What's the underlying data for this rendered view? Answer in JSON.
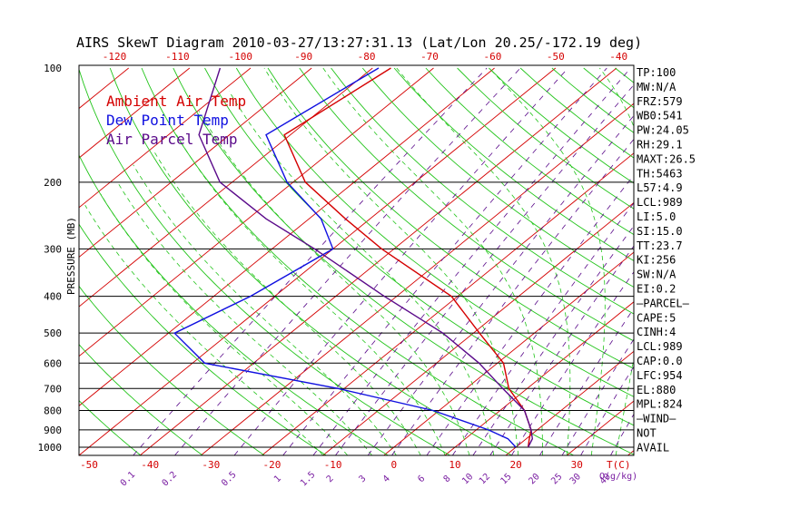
{
  "title": "AIRS SkewT Diagram 2010-03-27/13:27:31.13 (Lat/Lon 20.25/-172.19 deg)",
  "colors": {
    "ambient": "#d40000",
    "dewpoint": "#1010e0",
    "parcel": "#5a0a8a",
    "isotherm": "#d40000",
    "dry_adiabat": "#22c41a",
    "moist_adiabat": "#22c41a",
    "mixing_ratio": "#5a0a8a",
    "isobar": "#000000"
  },
  "chart_data": {
    "type": "line",
    "title": "AIRS SkewT Diagram 2010-03-27/13:27:31.13 (Lat/Lon 20.25/-172.19 deg)",
    "ylabel": "PRESSURE (MB)",
    "xlabel": "T(C)",
    "pressure_levels": [
      100,
      200,
      300,
      400,
      500,
      600,
      700,
      800,
      900,
      1000
    ],
    "pressure_range": [
      100,
      1050
    ],
    "bottom_temp_range": [
      -55,
      40
    ],
    "top_temp_ticks": [
      -120,
      -110,
      -100,
      -90,
      -80,
      -70,
      -60,
      -50,
      -40
    ],
    "bottom_temp_ticks": [
      -50,
      -40,
      -30,
      -20,
      -10,
      0,
      10,
      20,
      30
    ],
    "mixing_ratio_labels": [
      "0.1",
      "0.2",
      "0.5",
      "1",
      "1.5",
      "2",
      "3",
      "4",
      "6",
      "8",
      "10",
      "12",
      "15",
      "20",
      "25",
      "30",
      "40"
    ],
    "mixing_ratio_values": [
      0.1,
      0.2,
      0.5,
      1,
      1.5,
      2,
      3,
      4,
      6,
      8,
      10,
      12,
      15,
      20,
      25,
      30,
      40
    ],
    "mixing_ratio_unit": "Q(g/kg)",
    "legend": [
      "Ambient Air Temp",
      "Dew Point Temp",
      "Air Parcel Temp"
    ],
    "series": [
      {
        "name": "Ambient Air Temp",
        "points": [
          [
            100,
            -77
          ],
          [
            150,
            -81
          ],
          [
            200,
            -68
          ],
          [
            250,
            -54
          ],
          [
            300,
            -42
          ],
          [
            400,
            -21
          ],
          [
            500,
            -9
          ],
          [
            600,
            1
          ],
          [
            700,
            7
          ],
          [
            800,
            14
          ],
          [
            900,
            19
          ],
          [
            950,
            20.5
          ],
          [
            1000,
            22
          ]
        ]
      },
      {
        "name": "Dew Point Temp",
        "points": [
          [
            100,
            -79
          ],
          [
            150,
            -84
          ],
          [
            200,
            -71
          ],
          [
            250,
            -58
          ],
          [
            300,
            -50
          ],
          [
            400,
            -54
          ],
          [
            500,
            -59
          ],
          [
            600,
            -48
          ],
          [
            700,
            -21
          ],
          [
            800,
            -1
          ],
          [
            900,
            12
          ],
          [
            950,
            17
          ],
          [
            1000,
            20
          ]
        ]
      },
      {
        "name": "Air Parcel Temp",
        "points": [
          [
            100,
            -105
          ],
          [
            150,
            -95
          ],
          [
            200,
            -82
          ],
          [
            250,
            -67
          ],
          [
            300,
            -53
          ],
          [
            400,
            -32
          ],
          [
            500,
            -15
          ],
          [
            600,
            -3
          ],
          [
            700,
            6
          ],
          [
            800,
            14
          ],
          [
            900,
            19
          ],
          [
            950,
            21
          ],
          [
            1000,
            22
          ]
        ]
      }
    ]
  },
  "stats": [
    "TP:100",
    "MW:N/A",
    "FRZ:579",
    "WB0:541",
    "PW:24.05",
    "RH:29.1",
    "MAXT:26.5",
    "TH:5463",
    "L57:4.9",
    "LCL:989",
    "LI:5.0",
    "SI:15.0",
    "TT:23.7",
    "KI:256",
    "SW:N/A",
    "EI:0.2",
    "—PARCEL—",
    "CAPE:5",
    "CINH:4",
    "LCL:989",
    "CAP:0.0",
    "LFC:954",
    "EL:880",
    "MPL:824",
    "—WIND—",
    "NOT",
    "AVAIL"
  ]
}
